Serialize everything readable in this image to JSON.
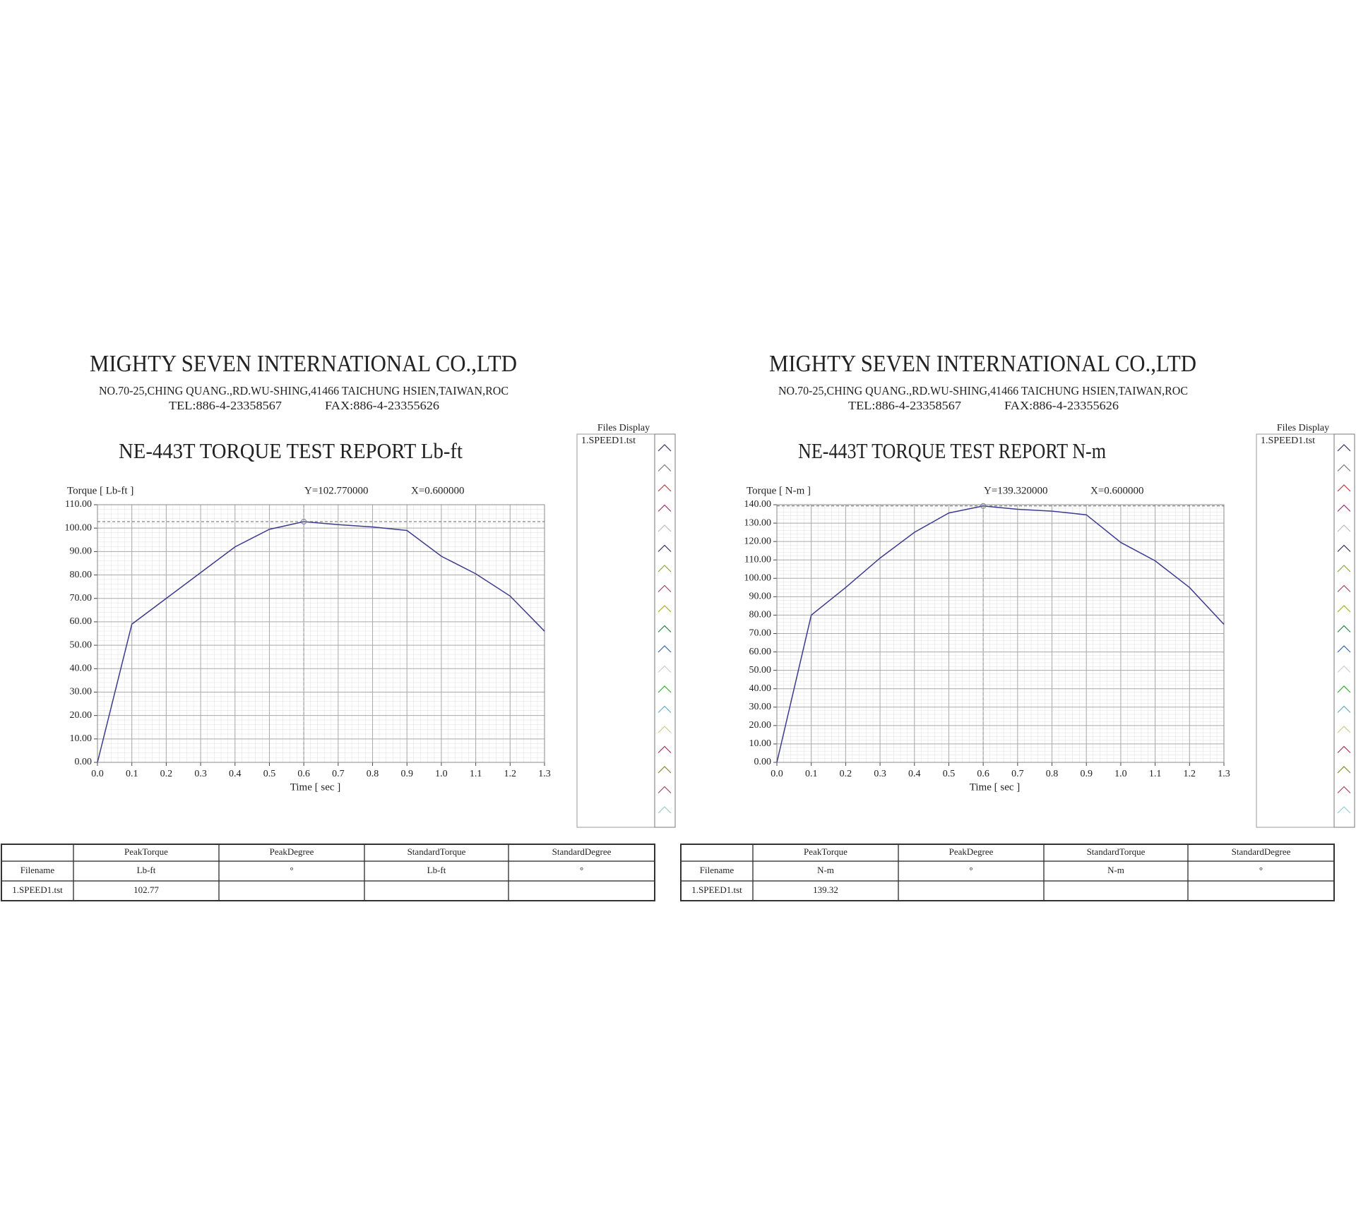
{
  "chart_data": [
    {
      "type": "line",
      "company": "MIGHTY SEVEN INTERNATIONAL CO.,LTD",
      "address": "NO.70-25,CHING QUANG.,RD.WU-SHING,41466 TAICHUNG HSIEN,TAIWAN,ROC",
      "tel": "TEL:886-4-23358567",
      "fax": "FAX:886-4-23355626",
      "title": "NE-443T TORQUE TEST REPORT Lb-ft",
      "ylabel": "Torque [ Lb-ft ]",
      "xlabel": "Time [ sec ]",
      "readout_y": "Y=102.770000",
      "readout_x": "X=0.600000",
      "files_display_title": "Files Display",
      "x": [
        0,
        0.1,
        0.2,
        0.3,
        0.4,
        0.5,
        0.6,
        0.7,
        0.8,
        0.9,
        1.0,
        1.1,
        1.2,
        1.3
      ],
      "series": [
        {
          "name": "1.SPEED1.tst",
          "color": "#3b3b8e",
          "values": [
            0,
            59,
            70,
            81,
            92,
            99.5,
            102.77,
            101.5,
            100.5,
            99,
            88,
            80.5,
            71,
            56
          ]
        }
      ],
      "xlim": [
        0,
        1.3
      ],
      "xticks": [
        {
          "value": 0,
          "label": "0.0"
        },
        0.1,
        0.2,
        0.3,
        0.4,
        0.5,
        0.6,
        0.7,
        0.8,
        0.9,
        {
          "value": 1,
          "label": "1.0"
        },
        1.1,
        1.2,
        1.3
      ],
      "ylim": [
        0,
        110
      ],
      "yticks": [
        {
          "value": 0,
          "label": "0.00"
        },
        {
          "value": 10,
          "label": "10.00"
        },
        {
          "value": 20,
          "label": "20.00"
        },
        {
          "value": 30,
          "label": "30.00"
        },
        {
          "value": 40,
          "label": "40.00"
        },
        {
          "value": 50,
          "label": "50.00"
        },
        {
          "value": 60,
          "label": "60.00"
        },
        {
          "value": 70,
          "label": "70.00"
        },
        {
          "value": 80,
          "label": "80.00"
        },
        {
          "value": 90,
          "label": "90.00"
        },
        {
          "value": 100,
          "label": "100.00"
        },
        {
          "value": 110,
          "label": "110.00"
        }
      ],
      "grid": true,
      "table": {
        "rows": [
          [
            null,
            "PeakTorque",
            "PeakDegree",
            "StandardTorque",
            "StandardDegree"
          ],
          [
            "Filename",
            "Lb-ft",
            "°",
            "Lb-ft",
            "°"
          ],
          [
            "1.SPEED1.tst",
            "102.77",
            null,
            null,
            null
          ]
        ]
      }
    },
    {
      "type": "line",
      "company": "MIGHTY SEVEN INTERNATIONAL CO.,LTD",
      "address": "NO.70-25,CHING QUANG.,RD.WU-SHING,41466 TAICHUNG HSIEN,TAIWAN,ROC",
      "tel": "TEL:886-4-23358567",
      "fax": "FAX:886-4-23355626",
      "title": "NE-443T TORQUE TEST REPORT N-m",
      "ylabel": "Torque [ N-m ]",
      "xlabel": "Time [ sec ]",
      "readout_y": "Y=139.320000",
      "readout_x": "X=0.600000",
      "files_display_title": "Files Display",
      "x": [
        0,
        0.1,
        0.2,
        0.3,
        0.4,
        0.5,
        0.6,
        0.7,
        0.8,
        0.9,
        1.0,
        1.1,
        1.2,
        1.3
      ],
      "series": [
        {
          "name": "1.SPEED1.tst",
          "color": "#3b3b8e",
          "values": [
            0,
            80,
            95,
            111,
            125,
            135.5,
            139.32,
            137.5,
            136.5,
            134.5,
            119.5,
            109.5,
            95,
            75
          ]
        }
      ],
      "xlim": [
        0,
        1.3
      ],
      "xticks": [
        {
          "value": 0,
          "label": "0.0"
        },
        0.1,
        0.2,
        0.3,
        0.4,
        0.5,
        0.6,
        0.7,
        0.8,
        0.9,
        {
          "value": 1,
          "label": "1.0"
        },
        1.1,
        1.2,
        1.3
      ],
      "ylim": [
        0,
        140
      ],
      "yticks": [
        {
          "value": 0,
          "label": "0.00"
        },
        {
          "value": 10,
          "label": "10.00"
        },
        {
          "value": 20,
          "label": "20.00"
        },
        {
          "value": 30,
          "label": "30.00"
        },
        {
          "value": 40,
          "label": "40.00"
        },
        {
          "value": 50,
          "label": "50.00"
        },
        {
          "value": 60,
          "label": "60.00"
        },
        {
          "value": 70,
          "label": "70.00"
        },
        {
          "value": 80,
          "label": "80.00"
        },
        {
          "value": 90,
          "label": "90.00"
        },
        {
          "value": 100,
          "label": "100.00"
        },
        {
          "value": 110,
          "label": "110.00"
        },
        {
          "value": 120,
          "label": "120.00"
        },
        {
          "value": 130,
          "label": "130.00"
        },
        {
          "value": 140,
          "label": "140.00"
        }
      ],
      "grid": true,
      "table": {
        "rows": [
          [
            null,
            "PeakTorque",
            "PeakDegree",
            "StandardTorque",
            "StandardDegree"
          ],
          [
            "Filename",
            "N-m",
            "°",
            "N-m",
            "°"
          ],
          [
            "1.SPEED1.tst",
            "139.32",
            null,
            null,
            null
          ]
        ]
      }
    }
  ]
}
